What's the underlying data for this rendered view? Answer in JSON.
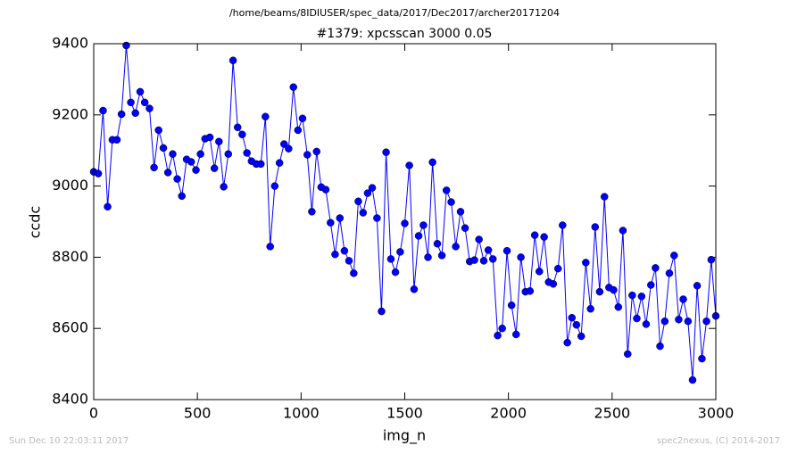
{
  "chart_data": {
    "type": "line",
    "suptitle": "/home/beams/8IDIUSER/spec_data/2017/Dec2017/archer20171204",
    "title": "#1379: xpcsscan 3000 0.05",
    "xlabel": "img_n",
    "ylabel": "ccdc",
    "footer_left": "Sun Dec 10 22:03:11 2017",
    "footer_right": "spec2nexus, (C) 2014-2017",
    "x": [
      0,
      22,
      45,
      67,
      90,
      112,
      134,
      157,
      179,
      201,
      224,
      246,
      269,
      291,
      313,
      336,
      358,
      381,
      403,
      425,
      448,
      470,
      493,
      515,
      537,
      560,
      582,
      604,
      627,
      649,
      672,
      694,
      716,
      739,
      761,
      784,
      806,
      828,
      851,
      873,
      896,
      918,
      940,
      963,
      985,
      1007,
      1030,
      1052,
      1075,
      1097,
      1119,
      1142,
      1164,
      1187,
      1209,
      1231,
      1254,
      1276,
      1299,
      1321,
      1343,
      1366,
      1388,
      1410,
      1433,
      1455,
      1478,
      1500,
      1522,
      1545,
      1567,
      1590,
      1612,
      1634,
      1657,
      1679,
      1701,
      1724,
      1746,
      1769,
      1791,
      1813,
      1836,
      1858,
      1881,
      1903,
      1925,
      1948,
      1970,
      1993,
      2015,
      2037,
      2060,
      2082,
      2104,
      2127,
      2149,
      2172,
      2194,
      2216,
      2239,
      2261,
      2284,
      2306,
      2328,
      2351,
      2373,
      2396,
      2418,
      2440,
      2463,
      2485,
      2507,
      2530,
      2552,
      2575,
      2597,
      2619,
      2642,
      2664,
      2687,
      2709,
      2731,
      2754,
      2776,
      2799,
      2821,
      2843,
      2866,
      2888,
      2910,
      2933,
      2955,
      2978,
      3000
    ],
    "series": [
      {
        "name": "ccdc",
        "color": "#0000ff",
        "values": [
          9040,
          9035,
          9212,
          8942,
          9130,
          9130,
          9202,
          9395,
          9235,
          9205,
          9265,
          9235,
          9218,
          9052,
          9157,
          9107,
          9038,
          9090,
          9020,
          8972,
          9075,
          9068,
          9045,
          9090,
          9133,
          9137,
          9050,
          9125,
          8998,
          9090,
          9353,
          9165,
          9145,
          9093,
          9070,
          9062,
          9062,
          9195,
          8830,
          9000,
          9065,
          9118,
          9105,
          9278,
          9157,
          9190,
          9088,
          8928,
          9097,
          8997,
          8990,
          8897,
          8808,
          8910,
          8818,
          8790,
          8755,
          8957,
          8925,
          8980,
          8995,
          8910,
          8648,
          9095,
          8795,
          8758,
          8815,
          8895,
          9058,
          8710,
          8860,
          8890,
          8800,
          9067,
          8838,
          8805,
          8988,
          8955,
          8830,
          8928,
          8882,
          8788,
          8792,
          8850,
          8790,
          8820,
          8795,
          8580,
          8600,
          8818,
          8665,
          8583,
          8800,
          8703,
          8705,
          8862,
          8760,
          8857,
          8730,
          8725,
          8768,
          8890,
          8560,
          8630,
          8610,
          8578,
          8785,
          8655,
          8885,
          8703,
          8970,
          8715,
          8708,
          8660,
          8875,
          8528,
          8693,
          8628,
          8690,
          8612,
          8722,
          8770,
          8550,
          8620,
          8755,
          8805,
          8625,
          8682,
          8620,
          8455,
          8720,
          8515,
          8620,
          8793,
          8635
        ]
      }
    ],
    "xlim": [
      0,
      3000
    ],
    "xticks": [
      0,
      500,
      1000,
      1500,
      2000,
      2500,
      3000
    ],
    "ylim": [
      8400,
      9400
    ],
    "yticks": [
      8400,
      8600,
      8800,
      9000,
      9200,
      9400
    ],
    "grid": false
  }
}
